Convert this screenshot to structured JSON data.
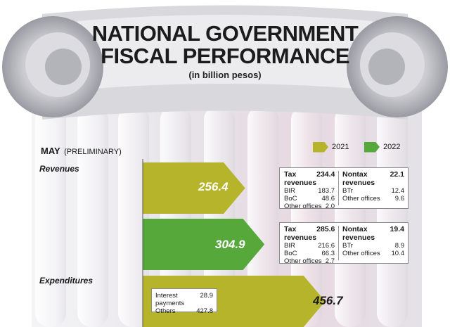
{
  "header": {
    "title_line1": "NATIONAL GOVERNMENT",
    "title_line2": "FISCAL PERFORMANCE",
    "subtitle": "(in billion pesos)"
  },
  "period": {
    "month": "MAY",
    "note": "(PRELIMINARY)"
  },
  "legend": [
    {
      "label": "2021",
      "color": "#b5b42a"
    },
    {
      "label": "2022",
      "color": "#56a83b"
    }
  ],
  "colors": {
    "y2021": "#b5b42a",
    "y2022": "#56a83b",
    "background": "#e7e5ea"
  },
  "chart_data": {
    "type": "bar",
    "categories": [
      "Revenues",
      "Expenditures"
    ],
    "series": [
      {
        "name": "2021",
        "values": [
          256.4,
          456.7
        ]
      },
      {
        "name": "2022",
        "values": [
          304.9,
          null
        ]
      }
    ],
    "value_labels": {
      "rev_2021": "256.4",
      "rev_2022": "304.9",
      "exp_2021": "456.7"
    },
    "xlim": [
      0,
      470
    ]
  },
  "revenues": {
    "label": "Revenues",
    "breakdown_2021": {
      "tax": {
        "label": "Tax revenues",
        "value": "234.4",
        "items": [
          {
            "label": "BIR",
            "value": "183.7"
          },
          {
            "label": "BoC",
            "value": "48.6"
          },
          {
            "label": "Other offices",
            "value": "2.0"
          }
        ]
      },
      "nontax": {
        "label": "Nontax revenues",
        "value": "22.1",
        "items": [
          {
            "label": "BTr",
            "value": "12.4"
          },
          {
            "label": "Other offices",
            "value": "9.6"
          }
        ]
      }
    },
    "breakdown_2022": {
      "tax": {
        "label": "Tax revenues",
        "value": "285.6",
        "items": [
          {
            "label": "BIR",
            "value": "216.6"
          },
          {
            "label": "BoC",
            "value": "66.3"
          },
          {
            "label": "Other offices",
            "value": "2.7"
          }
        ]
      },
      "nontax": {
        "label": "Nontax revenues",
        "value": "19.4",
        "items": [
          {
            "label": "BTr",
            "value": "8.9"
          },
          {
            "label": "Other offices",
            "value": "10.4"
          }
        ]
      }
    }
  },
  "expenditures": {
    "label": "Expenditures",
    "items": [
      {
        "label": "Interest payments",
        "value": "28.9"
      },
      {
        "label": "Others",
        "value": "427.8"
      }
    ]
  }
}
